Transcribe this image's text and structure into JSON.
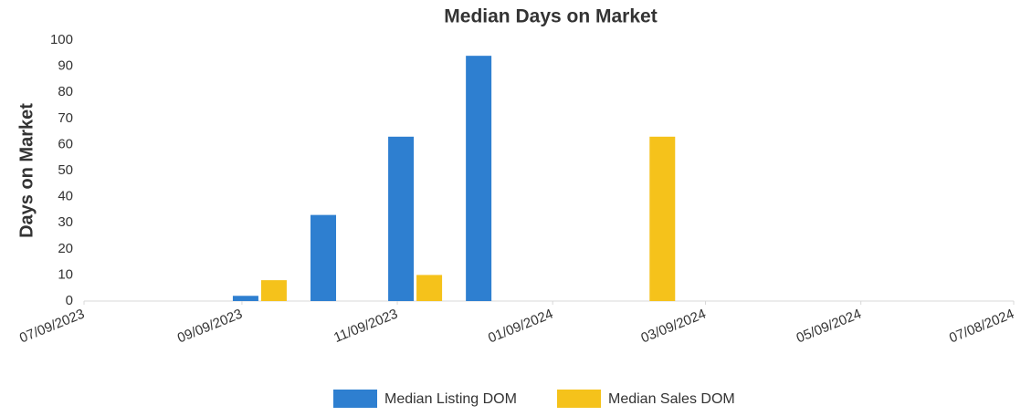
{
  "chart_data": {
    "type": "bar",
    "title": "Median Days on Market",
    "y_label": "Days on Market",
    "x": [
      "2023-09",
      "2023-10",
      "2023-11",
      "2023-12",
      "2024-01",
      "2024-02"
    ],
    "series": [
      {
        "name": "Median Listing DOM",
        "color": "#2e7fd0",
        "values": [
          2,
          33,
          63,
          94,
          null,
          null
        ]
      },
      {
        "name": "Median Sales DOM",
        "color": "#f5c21b",
        "values": [
          8,
          null,
          10,
          null,
          null,
          63
        ]
      }
    ],
    "xlim": [
      "2023-07-09",
      "2024-07-08"
    ],
    "xticks": [
      {
        "value": "2023-07-09",
        "label": "07/09/2023"
      },
      {
        "value": "2023-09-09",
        "label": "09/09/2023"
      },
      {
        "value": "2023-11-09",
        "label": "11/09/2023"
      },
      {
        "value": "2024-01-09",
        "label": "01/09/2024"
      },
      {
        "value": "2024-03-09",
        "label": "03/09/2024"
      },
      {
        "value": "2024-05-09",
        "label": "05/09/2024"
      },
      {
        "value": "2024-07-08",
        "label": "07/08/2024"
      }
    ],
    "ylim": [
      0,
      100
    ],
    "yticks": [
      0,
      10,
      20,
      30,
      40,
      50,
      60,
      70,
      80,
      90,
      100
    ],
    "legend": "bottom"
  }
}
